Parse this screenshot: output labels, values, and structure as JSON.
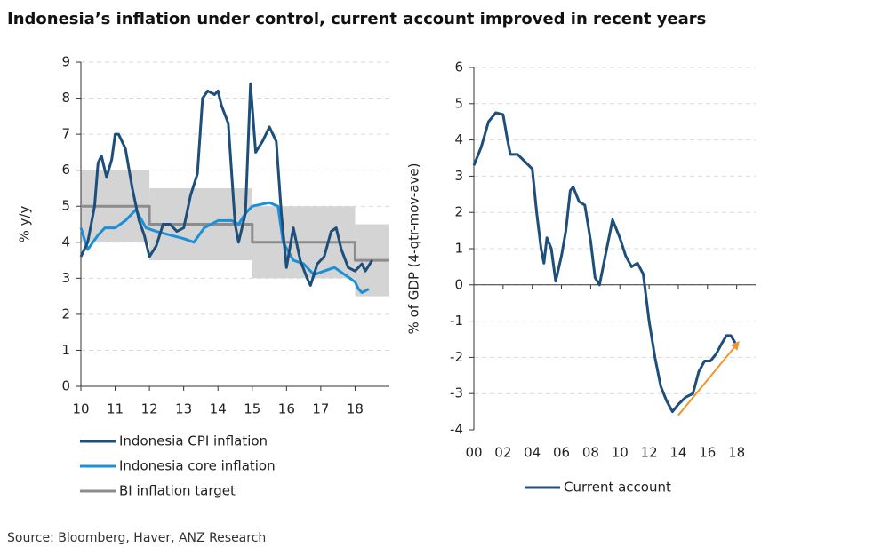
{
  "header": {
    "title": "Indonesia’s inflation under control, current account improved in recent years"
  },
  "footer": {
    "source": "Source: Bloomberg, Haver, ANZ Research"
  },
  "chart_data": [
    {
      "type": "line",
      "y_label": "% y/y",
      "xlim": [
        10,
        19
      ],
      "ylim": [
        0,
        9
      ],
      "xticks": [
        10,
        11,
        12,
        13,
        14,
        15,
        16,
        17,
        18
      ],
      "yticks": [
        0,
        1,
        2,
        3,
        4,
        5,
        6,
        7,
        8,
        9
      ],
      "grid": true,
      "legend": "below",
      "target_band": {
        "color": "#d4d4d4",
        "start": [
          10,
          12,
          15,
          18
        ],
        "end": [
          12,
          15,
          18,
          19
        ],
        "lower": [
          4,
          3.5,
          3,
          2.5
        ],
        "upper": [
          6,
          5.5,
          5,
          4.5
        ]
      },
      "series": [
        {
          "name": "Indonesia CPI inflation",
          "color": "#1d4f7a",
          "x": [
            10.0,
            10.2,
            10.4,
            10.5,
            10.6,
            10.75,
            10.9,
            11.0,
            11.1,
            11.3,
            11.5,
            11.7,
            11.85,
            12.0,
            12.2,
            12.4,
            12.6,
            12.8,
            13.0,
            13.2,
            13.4,
            13.55,
            13.7,
            13.9,
            14.0,
            14.1,
            14.3,
            14.5,
            14.6,
            14.8,
            14.95,
            15.1,
            15.3,
            15.5,
            15.7,
            15.85,
            16.0,
            16.2,
            16.4,
            16.6,
            16.7,
            16.9,
            17.1,
            17.3,
            17.45,
            17.6,
            17.8,
            18.0,
            18.2,
            18.3,
            18.5
          ],
          "values": [
            3.6,
            4.0,
            5.0,
            6.2,
            6.4,
            5.8,
            6.3,
            7.0,
            7.0,
            6.6,
            5.5,
            4.6,
            4.2,
            3.6,
            3.9,
            4.5,
            4.5,
            4.3,
            4.4,
            5.3,
            5.9,
            8.0,
            8.2,
            8.1,
            8.2,
            7.8,
            7.3,
            4.5,
            4.0,
            4.8,
            8.4,
            6.5,
            6.8,
            7.2,
            6.8,
            4.8,
            3.3,
            4.4,
            3.5,
            3.0,
            2.8,
            3.4,
            3.6,
            4.3,
            4.4,
            3.8,
            3.3,
            3.2,
            3.4,
            3.2,
            3.5
          ]
        },
        {
          "name": "Indonesia core inflation",
          "color": "#1c8fd6",
          "x": [
            10.0,
            10.2,
            10.5,
            10.7,
            11.0,
            11.3,
            11.6,
            11.9,
            12.2,
            12.6,
            13.0,
            13.3,
            13.6,
            14.0,
            14.4,
            14.6,
            14.8,
            15.0,
            15.5,
            15.75,
            15.9,
            16.2,
            16.5,
            16.8,
            17.1,
            17.4,
            17.7,
            18.0,
            18.1,
            18.2,
            18.4
          ],
          "values": [
            4.4,
            3.8,
            4.2,
            4.4,
            4.4,
            4.6,
            4.9,
            4.4,
            4.3,
            4.2,
            4.1,
            4.0,
            4.4,
            4.6,
            4.6,
            4.5,
            4.8,
            5.0,
            5.1,
            5.0,
            4.0,
            3.5,
            3.4,
            3.1,
            3.2,
            3.3,
            3.1,
            2.9,
            2.7,
            2.6,
            2.7
          ]
        },
        {
          "name": "BI inflation target",
          "color": "#8c8c8c",
          "x": [
            10,
            12,
            12,
            15,
            15,
            18,
            18,
            19
          ],
          "values": [
            5,
            5,
            4.5,
            4.5,
            4,
            4,
            3.5,
            3.5
          ]
        }
      ]
    },
    {
      "type": "line",
      "y_label": "% of GDP (4-qtr-mov-ave)",
      "xlim": [
        0,
        19.3
      ],
      "ylim": [
        -4,
        6
      ],
      "xaxis_crosses": 0,
      "xticks": [
        {
          "value": 0,
          "label": "00"
        },
        {
          "value": 2,
          "label": "02"
        },
        {
          "value": 4,
          "label": "04"
        },
        {
          "value": 6,
          "label": "06"
        },
        {
          "value": 8,
          "label": "08"
        },
        10,
        12,
        14,
        16,
        18
      ],
      "yticks": [
        -4,
        -3,
        -2,
        -1,
        0,
        1,
        2,
        3,
        4,
        5,
        6
      ],
      "grid": true,
      "legend": "below",
      "arrow": {
        "color": "#f0962a",
        "x": [
          14,
          18.2
        ],
        "values": [
          -3.6,
          -1.55
        ]
      },
      "series": [
        {
          "name": "Current account",
          "color": "#1d4f7a",
          "x": [
            0,
            0.5,
            1.0,
            1.5,
            2.0,
            2.3,
            2.5,
            3.0,
            3.5,
            4.0,
            4.3,
            4.6,
            4.8,
            5.0,
            5.3,
            5.6,
            6.0,
            6.3,
            6.6,
            6.8,
            7.2,
            7.6,
            8.0,
            8.3,
            8.6,
            9.0,
            9.5,
            10.0,
            10.4,
            10.8,
            11.2,
            11.6,
            12.0,
            12.4,
            12.8,
            13.2,
            13.6,
            14.0,
            14.5,
            15.0,
            15.4,
            15.8,
            16.2,
            16.6,
            17.0,
            17.3,
            17.6,
            17.9
          ],
          "values": [
            3.3,
            3.8,
            4.5,
            4.75,
            4.7,
            4.0,
            3.6,
            3.6,
            3.4,
            3.2,
            2.0,
            1.0,
            0.6,
            1.3,
            1.0,
            0.1,
            0.8,
            1.5,
            2.6,
            2.7,
            2.3,
            2.2,
            1.2,
            0.2,
            0.0,
            0.8,
            1.8,
            1.3,
            0.8,
            0.5,
            0.6,
            0.3,
            -1.0,
            -2.0,
            -2.8,
            -3.2,
            -3.5,
            -3.3,
            -3.1,
            -3.0,
            -2.4,
            -2.1,
            -2.1,
            -1.9,
            -1.6,
            -1.4,
            -1.4,
            -1.6
          ]
        }
      ]
    }
  ]
}
